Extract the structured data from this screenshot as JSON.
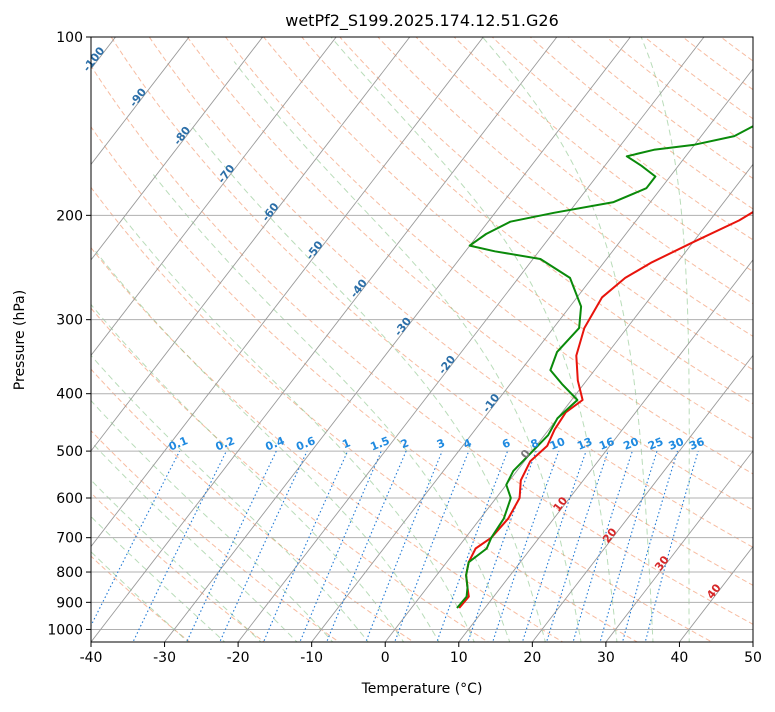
{
  "chart_data": {
    "type": "skew-t",
    "title": "wetPf2_S199.2025.174.12.51.G26",
    "xlabel": "Temperature (°C)",
    "ylabel": "Pressure (hPa)",
    "xlim": [
      -40,
      50
    ],
    "ylim": [
      1050,
      100
    ],
    "y_scale": "log",
    "grid": true,
    "x_ticks": [
      -40,
      -30,
      -20,
      -10,
      0,
      10,
      20,
      30,
      40,
      50
    ],
    "y_ticks": [
      100,
      200,
      300,
      400,
      500,
      600,
      700,
      800,
      900,
      1000
    ],
    "isotherm_labels": [
      "-100",
      "-90",
      "-80",
      "-70",
      "-60",
      "-50",
      "-40",
      "-30",
      "-20",
      "-10",
      "0",
      "10",
      "20",
      "30",
      "40"
    ],
    "mixing_ratio_labels": [
      "0.1",
      "0.2",
      "0.4",
      "0.6",
      "1",
      "1.5",
      "2",
      "3",
      "4",
      "6",
      "8",
      "10",
      "13",
      "16",
      "20",
      "25",
      "30",
      "36"
    ],
    "series": [
      {
        "role": "temperature",
        "color": "#e8140c",
        "points": [
          [
            6.5,
            920
          ],
          [
            6.6,
            880
          ],
          [
            5.5,
            850
          ],
          [
            4,
            810
          ],
          [
            3,
            770
          ],
          [
            2.5,
            730
          ],
          [
            3.5,
            700
          ],
          [
            3.8,
            650
          ],
          [
            3.2,
            600
          ],
          [
            1.5,
            560
          ],
          [
            0.8,
            520
          ],
          [
            1.5,
            490
          ],
          [
            0.8,
            460
          ],
          [
            0.5,
            430
          ],
          [
            1.5,
            410
          ],
          [
            -1.2,
            380
          ],
          [
            -4,
            345
          ],
          [
            -5.8,
            310
          ],
          [
            -6.6,
            275
          ],
          [
            -5.5,
            255
          ],
          [
            -3.5,
            240
          ],
          [
            0,
            222
          ],
          [
            4,
            204
          ],
          [
            6.5,
            188
          ],
          [
            9.5,
            172
          ],
          [
            11.5,
            158
          ],
          [
            12.5,
            147
          ],
          [
            12.8,
            138
          ],
          [
            14,
            128
          ],
          [
            16.5,
            118
          ],
          [
            18.5,
            108
          ],
          [
            19.5,
            100
          ]
        ]
      },
      {
        "role": "dewpoint",
        "color": "#0a8a0a",
        "points": [
          [
            6.2,
            920
          ],
          [
            6.3,
            880
          ],
          [
            5.5,
            850
          ],
          [
            4,
            810
          ],
          [
            3,
            770
          ],
          [
            4,
            730
          ],
          [
            3.5,
            700
          ],
          [
            3.2,
            650
          ],
          [
            2,
            600
          ],
          [
            0,
            570
          ],
          [
            -0.5,
            540
          ],
          [
            0,
            505
          ],
          [
            0.5,
            470
          ],
          [
            0,
            440
          ],
          [
            0.8,
            410
          ],
          [
            -3,
            385
          ],
          [
            -6,
            365
          ],
          [
            -7,
            340
          ],
          [
            -6.5,
            310
          ],
          [
            -8.5,
            285
          ],
          [
            -13,
            255
          ],
          [
            -19,
            237
          ],
          [
            -26,
            230
          ],
          [
            -30,
            225
          ],
          [
            -29,
            215
          ],
          [
            -27,
            205
          ],
          [
            -22,
            198
          ],
          [
            -15,
            190
          ],
          [
            -12,
            180
          ],
          [
            -12,
            172
          ],
          [
            -15,
            165
          ],
          [
            -18,
            159
          ],
          [
            -15,
            155
          ],
          [
            -10,
            152
          ],
          [
            -5.5,
            147
          ],
          [
            -3,
            138
          ],
          [
            -1,
            128
          ],
          [
            1,
            118
          ],
          [
            3,
            108
          ],
          [
            4,
            100
          ]
        ]
      }
    ]
  }
}
